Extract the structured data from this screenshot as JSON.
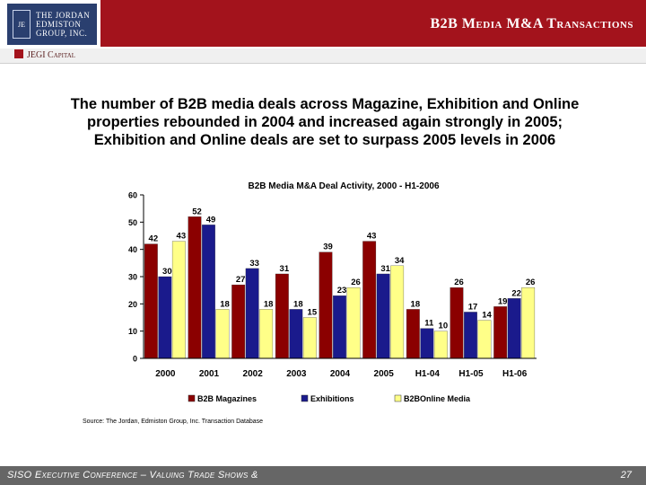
{
  "header": {
    "logo_text_1": "The Jordan",
    "logo_text_2": "Edmiston",
    "logo_text_3": "Group, Inc.",
    "logo_mark": "JE",
    "title": "B2B Media M&A Transactions",
    "capital_label": "JEGI Capital"
  },
  "headline": "The number of B2B media deals across Magazine, Exhibition and Online properties rebounded in 2004 and increased again strongly in 2005; Exhibition and Online deals are set to surpass 2005 levels in 2006",
  "source": "Source: The Jordan, Edmiston Group, Inc. Transaction Database",
  "footer": {
    "text": "SISO Executive Conference – Valuing Trade Shows &",
    "page": "27"
  },
  "chart_data": {
    "type": "bar",
    "title": "B2B Media M&A Deal Activity, 2000 - H1-2006",
    "categories": [
      "2000",
      "2001",
      "2002",
      "2003",
      "2004",
      "2005",
      "H1-04",
      "H1-05",
      "H1-06"
    ],
    "series": [
      {
        "name": "B2B Magazines",
        "color": "#8b0000",
        "values": [
          42,
          52,
          27,
          31,
          39,
          43,
          18,
          26,
          19
        ]
      },
      {
        "name": "Exhibitions",
        "color": "#1a1a8c",
        "values": [
          30,
          49,
          33,
          18,
          23,
          31,
          11,
          17,
          22
        ]
      },
      {
        "name": "B2BOnline Media",
        "color": "#ffff88",
        "values": [
          43,
          18,
          18,
          15,
          26,
          34,
          10,
          14,
          26
        ]
      }
    ],
    "yticks": [
      0,
      10,
      20,
      30,
      40,
      50,
      60
    ],
    "ylim": [
      0,
      60
    ],
    "legend_position": "bottom",
    "grid": false
  }
}
